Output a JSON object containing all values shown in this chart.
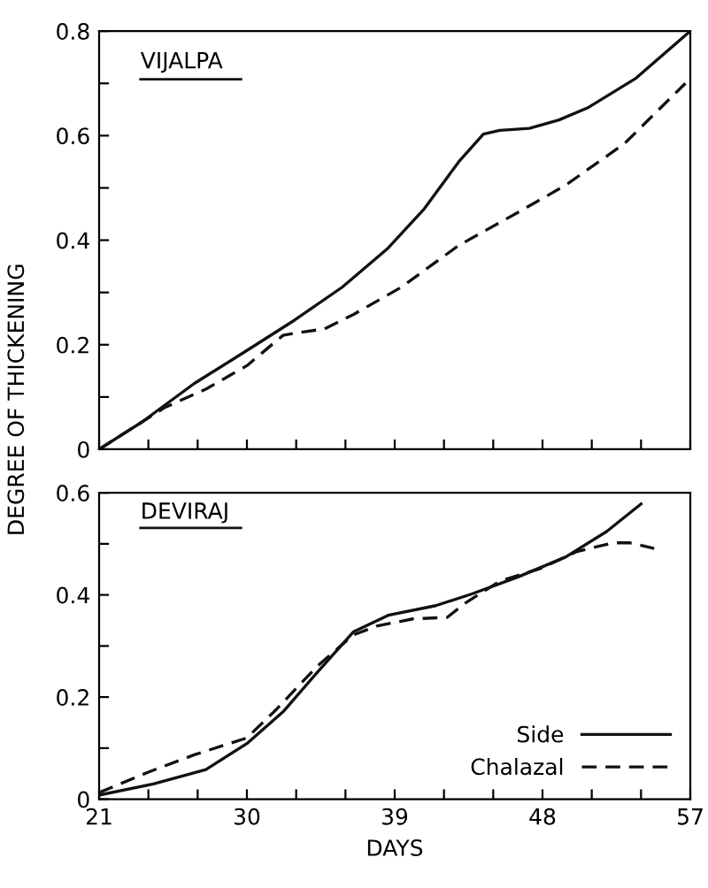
{
  "chart_data": [
    {
      "type": "line",
      "title": "VIJALPA",
      "ylabel": "DEGREE OF THICKENING",
      "tick_labels": "y",
      "legend": false,
      "grid": false,
      "xlim": [
        21,
        57
      ],
      "ylim": [
        0,
        0.8
      ],
      "xticks": [
        21,
        {
          "value": 24,
          "label": null
        },
        {
          "value": 27,
          "label": null
        },
        30,
        {
          "value": 33,
          "label": null
        },
        {
          "value": 36,
          "label": null
        },
        39,
        {
          "value": 42,
          "label": null
        },
        {
          "value": 45,
          "label": null
        },
        48,
        {
          "value": 51,
          "label": null
        },
        {
          "value": 54,
          "label": null
        },
        57
      ],
      "yticks": [
        0,
        {
          "value": 0.1,
          "label": null
        },
        0.2,
        {
          "value": 0.3,
          "label": null
        },
        0.4,
        {
          "value": 0.5,
          "label": null
        },
        0.6,
        {
          "value": 0.7,
          "label": null
        },
        0.8
      ],
      "series": [
        {
          "color": "#111111",
          "line_style": "solid",
          "x": [
            21,
            23.6,
            26.8,
            30.0,
            32.9,
            35.8,
            38.6,
            40.8,
            42.9,
            44.4,
            45.4,
            47.2,
            49.0,
            50.8,
            53.7,
            57
          ],
          "values": [
            0,
            0.052,
            0.126,
            0.189,
            0.247,
            0.31,
            0.385,
            0.46,
            0.55,
            0.603,
            0.61,
            0.614,
            0.63,
            0.654,
            0.71,
            0.8
          ]
        },
        {
          "color": "#111111",
          "line_style": "dashed",
          "x": [
            21,
            23.6,
            25.0,
            27.5,
            30.0,
            32.2,
            33.3,
            34.7,
            36.5,
            39.4,
            42.9,
            46.5,
            49.4,
            53.0,
            56.7
          ],
          "values": [
            0,
            0.052,
            0.08,
            0.115,
            0.16,
            0.218,
            0.224,
            0.23,
            0.258,
            0.31,
            0.39,
            0.453,
            0.505,
            0.585,
            0.7
          ]
        }
      ]
    },
    {
      "type": "line",
      "title": "DEVIRAJ",
      "xlabel": "DAYS",
      "legend": "bottom right",
      "grid": false,
      "xlim": [
        21,
        57
      ],
      "ylim": [
        0,
        0.6
      ],
      "xticks": [
        21,
        {
          "value": 24,
          "label": null
        },
        {
          "value": 27,
          "label": null
        },
        30,
        {
          "value": 33,
          "label": null
        },
        {
          "value": 36,
          "label": null
        },
        39,
        {
          "value": 42,
          "label": null
        },
        {
          "value": 45,
          "label": null
        },
        48,
        {
          "value": 51,
          "label": null
        },
        {
          "value": 54,
          "label": null
        },
        57
      ],
      "yticks": [
        0,
        {
          "value": 0.1,
          "label": null
        },
        0.2,
        {
          "value": 0.3,
          "label": null
        },
        0.4,
        {
          "value": 0.5,
          "label": null
        },
        0.6
      ],
      "series": [
        {
          "name": "Side",
          "color": "#111111",
          "line_style": "solid",
          "x": [
            21,
            24.3,
            27.5,
            30.0,
            32.2,
            34.3,
            36.5,
            38.6,
            41.5,
            43.7,
            46.5,
            49.4,
            51.9,
            54.0
          ],
          "values": [
            0.008,
            0.03,
            0.058,
            0.109,
            0.171,
            0.249,
            0.328,
            0.36,
            0.379,
            0.402,
            0.435,
            0.474,
            0.524,
            0.578
          ]
        },
        {
          "name": "Chalazal",
          "color": "#111111",
          "line_style": "dashed",
          "x": [
            21,
            24.0,
            26.8,
            30.0,
            31.8,
            34.3,
            36.5,
            37.9,
            40.1,
            42.2,
            43.3,
            45.4,
            47.9,
            50.1,
            52.3,
            53.3,
            54.8
          ],
          "values": [
            0.013,
            0.053,
            0.087,
            0.12,
            0.176,
            0.261,
            0.322,
            0.339,
            0.353,
            0.356,
            0.384,
            0.427,
            0.452,
            0.485,
            0.502,
            0.502,
            0.491
          ]
        }
      ]
    }
  ]
}
